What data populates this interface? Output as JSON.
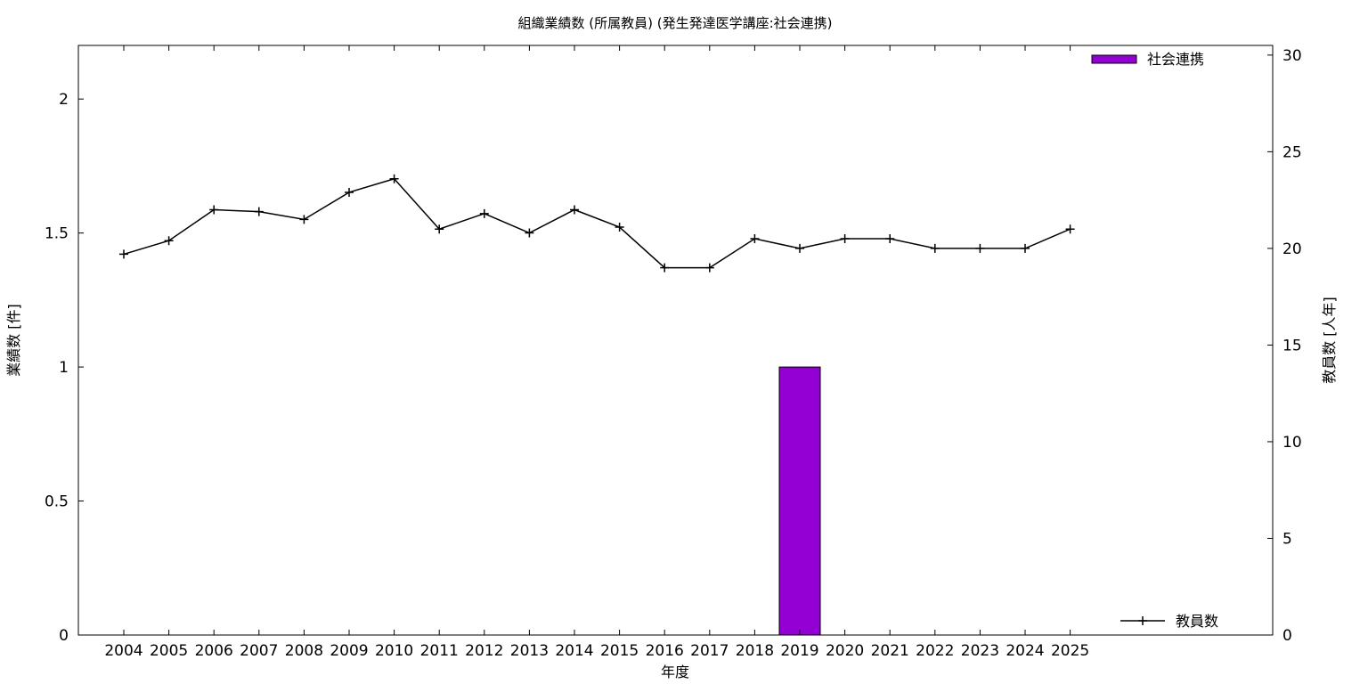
{
  "chart_data": {
    "type": "bar",
    "title": "組織業績数 (所属教員) (発生発達医学講座:社会連携)",
    "xlabel": "年度",
    "ylabel": "業績数 [件]",
    "y2label": "教員数 [人年]",
    "categories": [
      "2004",
      "2005",
      "2006",
      "2007",
      "2008",
      "2009",
      "2010",
      "2011",
      "2012",
      "2013",
      "2014",
      "2015",
      "2016",
      "2017",
      "2018",
      "2019",
      "2020",
      "2021",
      "2022",
      "2023",
      "2024",
      "2025"
    ],
    "ylim": [
      0,
      2.2
    ],
    "yticks": [
      "0",
      "0.5",
      "1",
      "1.5",
      "2"
    ],
    "y2lim": [
      0,
      30.5
    ],
    "y2ticks": [
      "0",
      "5",
      "10",
      "15",
      "20",
      "25",
      "30"
    ],
    "grid": false,
    "series": [
      {
        "name": "社会連携",
        "type": "bar",
        "axis": "left",
        "color": "#9400d3",
        "values": [
          0,
          0,
          0,
          0,
          0,
          0,
          0,
          0,
          0,
          0,
          0,
          0,
          0,
          0,
          0,
          1,
          0,
          0,
          0,
          0,
          0,
          0
        ]
      },
      {
        "name": "教員数",
        "type": "line",
        "axis": "right",
        "color": "#000000",
        "marker": "plus",
        "values": [
          19.7,
          20.4,
          22.0,
          21.9,
          21.5,
          22.9,
          23.6,
          21.0,
          21.8,
          20.8,
          22.0,
          21.1,
          19.0,
          19.0,
          20.5,
          20.0,
          20.5,
          20.5,
          20.0,
          20.0,
          20.0,
          21.0
        ]
      }
    ],
    "legend": [
      {
        "label": "社会連携",
        "placement": "top-right"
      },
      {
        "label": "教員数",
        "placement": "bottom-right"
      }
    ]
  }
}
